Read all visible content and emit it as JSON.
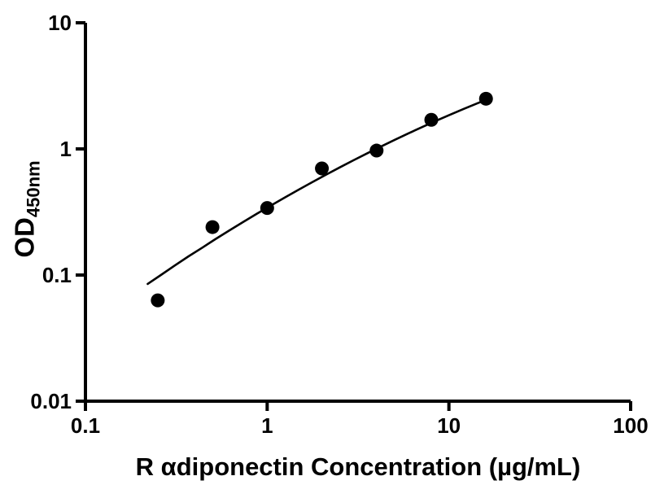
{
  "figure": {
    "background": "#ffffff",
    "axis_color": "#000000",
    "point_color": "#000000",
    "curve_color": "#000000"
  },
  "chart_data": {
    "type": "scatter",
    "title": "",
    "xlabel": "R αdiponectin Concentration (µg/mL)",
    "ylabel_main": "OD",
    "ylabel_sub": "450nm",
    "x_scale": "log",
    "y_scale": "log",
    "xlim": [
      0.1,
      100
    ],
    "ylim": [
      0.01,
      10
    ],
    "x_ticks": {
      "values": [
        0.1,
        1,
        10,
        100
      ],
      "labels": [
        "0.1",
        "1",
        "10",
        "100"
      ]
    },
    "y_ticks": {
      "values": [
        0.01,
        0.1,
        1,
        10
      ],
      "labels": [
        "0.01",
        "0.1",
        "1",
        "10"
      ]
    },
    "grid": false,
    "legend": "none",
    "points": {
      "x": [
        0.25,
        0.5,
        1,
        2,
        4,
        8,
        16
      ],
      "y": [
        0.063,
        0.24,
        0.34,
        0.7,
        0.97,
        1.7,
        2.5
      ]
    },
    "fit_curve": {
      "x": [
        0.22,
        0.26,
        0.31,
        0.37,
        0.44,
        0.52,
        0.62,
        0.74,
        0.88,
        1.05,
        1.25,
        1.49,
        1.77,
        2.11,
        2.51,
        2.99,
        3.56,
        4.23,
        5.04,
        6.0,
        7.14,
        8.5,
        10.1,
        12.0,
        14.3,
        16.0
      ],
      "y": [
        0.085,
        0.1,
        0.119,
        0.141,
        0.165,
        0.193,
        0.226,
        0.264,
        0.307,
        0.356,
        0.412,
        0.475,
        0.545,
        0.625,
        0.714,
        0.814,
        0.924,
        1.045,
        1.181,
        1.33,
        1.492,
        1.67,
        1.861,
        2.068,
        2.295,
        2.45
      ]
    }
  }
}
